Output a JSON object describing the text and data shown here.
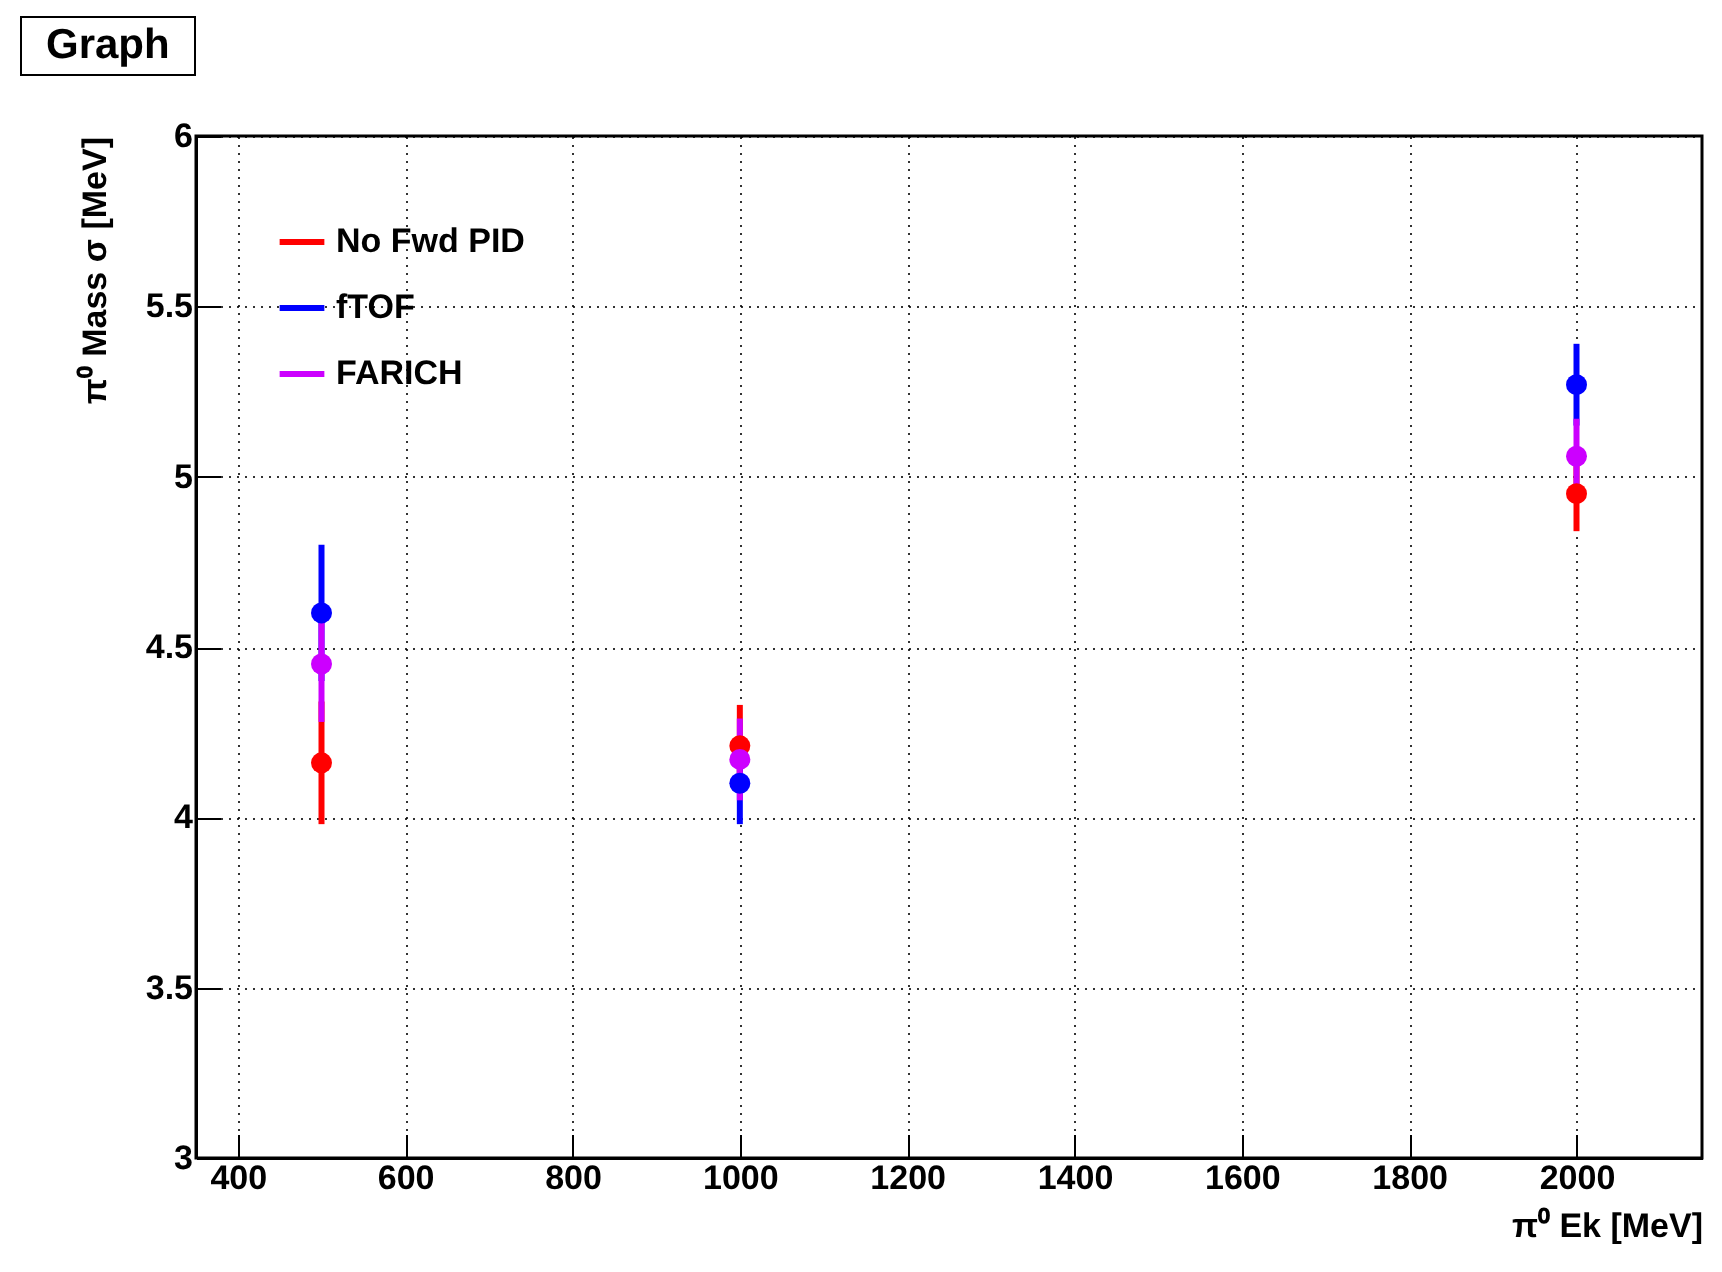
{
  "chart_data": {
    "type": "scatter",
    "title": "Graph",
    "xlabel": "π⁰ Ek [MeV]",
    "ylabel": "π⁰ Mass σ [MeV]",
    "x": [
      500,
      1000,
      2000
    ],
    "series": [
      {
        "name": "No Fwd PID",
        "color": "#ff0000",
        "values": [
          4.16,
          4.21,
          4.95
        ],
        "errors": [
          0.18,
          0.12,
          0.11
        ]
      },
      {
        "name": "fTOF",
        "color": "#0000ff",
        "values": [
          4.6,
          4.1,
          5.27
        ],
        "errors": [
          0.2,
          0.12,
          0.12
        ]
      },
      {
        "name": "FARICH",
        "color": "#cc00ff",
        "values": [
          4.45,
          4.17,
          5.06
        ],
        "errors": [
          0.17,
          0.12,
          0.11
        ]
      }
    ],
    "xlim": [
      350,
      2150
    ],
    "xticks": [
      400,
      600,
      800,
      1000,
      1200,
      1400,
      1600,
      1800,
      2000
    ],
    "ylim": [
      3,
      6
    ],
    "yticks": [
      3,
      3.5,
      4,
      4.5,
      5,
      5.5,
      6
    ],
    "grid": true,
    "legend": "top left",
    "marker": "circle"
  }
}
